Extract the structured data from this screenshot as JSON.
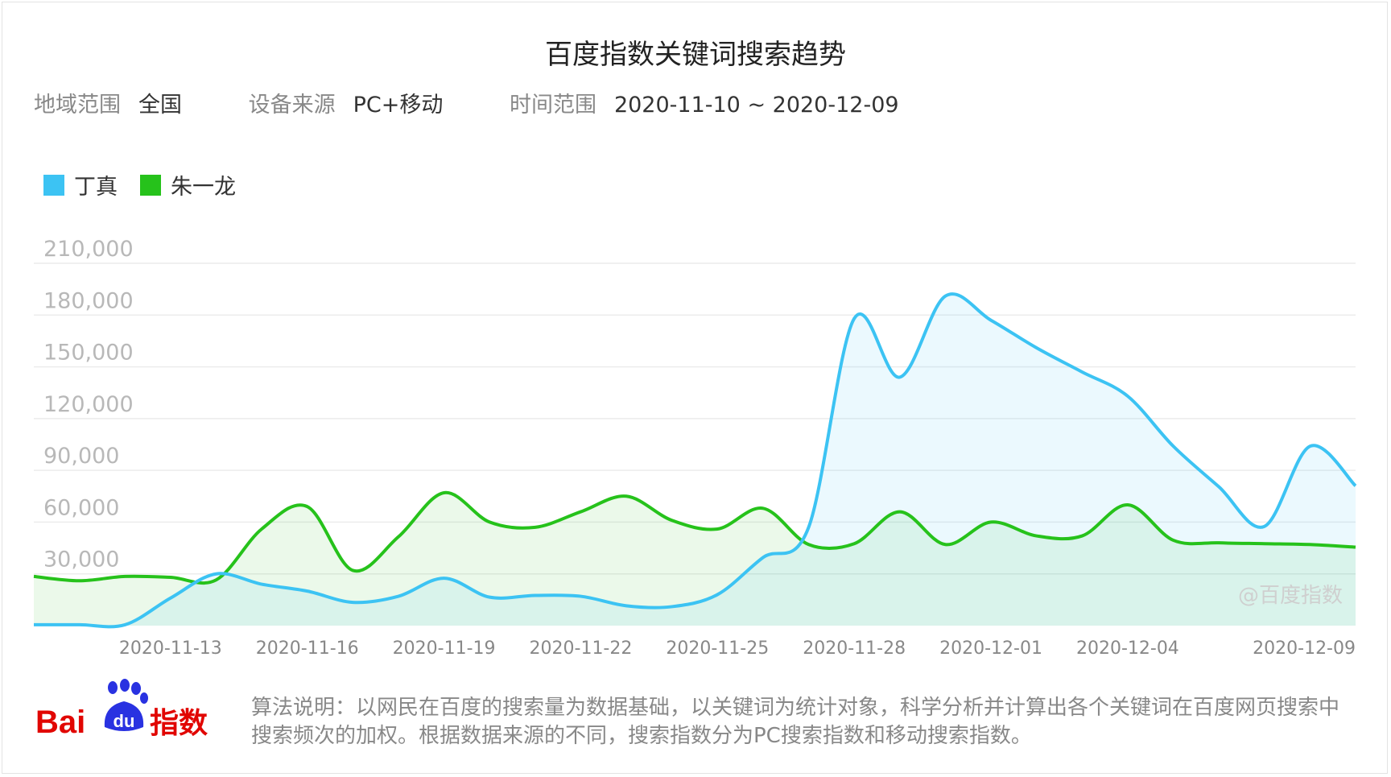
{
  "title": "百度指数关键词搜索趋势",
  "meta": {
    "region_label": "地域范围",
    "region_value": "全国",
    "device_label": "设备来源",
    "device_value": "PC+移动",
    "time_label": "时间范围",
    "time_value": "2020-11-10 ~ 2020-12-09"
  },
  "watermark": "@百度指数",
  "footer": "算法说明：以网民在百度的搜索量为数据基础，以关键词为统计对象，科学分析并计算出各个关键词在百度网页搜索中搜索频次的加权。根据数据来源的不同，搜索指数分为PC搜索指数和移动搜索指数。",
  "logo_text": {
    "bai": "Bai",
    "du": "du",
    "zhishu": "指数"
  },
  "colors": {
    "series_a": "#3cc3f3",
    "series_b": "#26c21b",
    "grid": "#ececec",
    "axis_text": "#999999"
  },
  "chart_data": {
    "type": "area",
    "x": [
      "2020-11-10",
      "2020-11-11",
      "2020-11-12",
      "2020-11-13",
      "2020-11-14",
      "2020-11-15",
      "2020-11-16",
      "2020-11-17",
      "2020-11-18",
      "2020-11-19",
      "2020-11-20",
      "2020-11-21",
      "2020-11-22",
      "2020-11-23",
      "2020-11-24",
      "2020-11-25",
      "2020-11-26",
      "2020-11-27",
      "2020-11-28",
      "2020-11-29",
      "2020-11-30",
      "2020-12-01",
      "2020-12-02",
      "2020-12-03",
      "2020-12-04",
      "2020-12-05",
      "2020-12-06",
      "2020-12-07",
      "2020-12-08",
      "2020-12-09"
    ],
    "x_tick_labels": [
      "2020-11-13",
      "2020-11-16",
      "2020-11-19",
      "2020-11-22",
      "2020-11-25",
      "2020-11-28",
      "2020-12-01",
      "2020-12-04",
      "2020-12-09"
    ],
    "y_ticks": [
      30000,
      60000,
      90000,
      120000,
      150000,
      180000,
      210000
    ],
    "y_tick_labels": [
      "30,000",
      "60,000",
      "90,000",
      "120,000",
      "150,000",
      "180,000",
      "210,000"
    ],
    "ylim": [
      0,
      210000
    ],
    "grid": true,
    "legend": "top-left",
    "series": [
      {
        "name": "丁真",
        "values": [
          500,
          500,
          500,
          16000,
          30000,
          24000,
          20000,
          13500,
          17000,
          27500,
          16500,
          17500,
          17000,
          11500,
          11000,
          18000,
          39500,
          57000,
          178000,
          144000,
          191000,
          177000,
          161000,
          147000,
          133000,
          104000,
          80500,
          57500,
          104000,
          81000
        ]
      },
      {
        "name": "朱一龙",
        "values": [
          28500,
          26000,
          28500,
          28000,
          26500,
          56000,
          69000,
          32000,
          51500,
          77000,
          60000,
          57000,
          66000,
          75000,
          61000,
          56000,
          68000,
          47000,
          47500,
          66000,
          47000,
          60000,
          52000,
          52000,
          70000,
          49500,
          48000,
          47500,
          47000,
          45500
        ]
      }
    ]
  }
}
